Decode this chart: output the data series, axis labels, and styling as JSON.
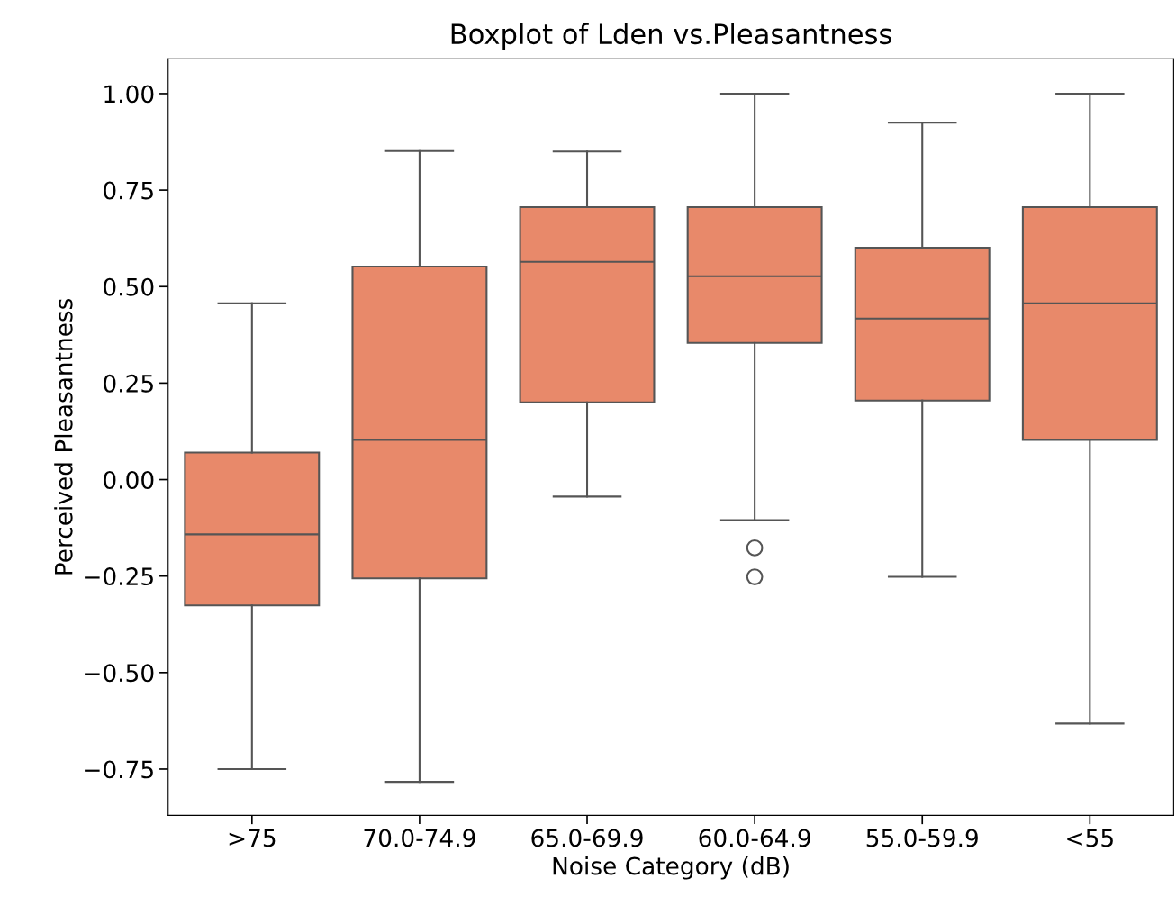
{
  "chart_data": {
    "type": "box",
    "title": "Boxplot of Lden vs.Pleasantness",
    "xlabel": "Noise Category (dB)",
    "ylabel": "Perceived Pleasantness",
    "categories": [
      ">75",
      "70.0-74.9",
      "65.0-69.9",
      "60.0-64.9",
      "55.0-59.9",
      "<55"
    ],
    "color": "#e8896a",
    "boxes": [
      {
        "low": -0.75,
        "q1": -0.326,
        "median": -0.142,
        "q3": 0.07,
        "high": 0.457
      },
      {
        "low": -0.783,
        "q1": -0.256,
        "median": 0.103,
        "q3": 0.552,
        "high": 0.851
      },
      {
        "low": -0.044,
        "q1": 0.2,
        "median": 0.564,
        "q3": 0.706,
        "high": 0.85
      },
      {
        "low": -0.105,
        "q1": 0.354,
        "median": 0.527,
        "q3": 0.706,
        "high": 1.0,
        "outliers": [
          -0.177,
          -0.252
        ]
      },
      {
        "low": -0.252,
        "q1": 0.205,
        "median": 0.417,
        "q3": 0.601,
        "high": 0.925
      },
      {
        "low": -0.632,
        "q1": 0.103,
        "median": 0.457,
        "q3": 0.706,
        "high": 1.0
      }
    ],
    "ylim": [
      -0.87,
      1.09
    ],
    "yticks": [
      {
        "value": -0.75,
        "label": "−0.75"
      },
      {
        "value": -0.5,
        "label": "−0.50"
      },
      {
        "value": -0.25,
        "label": "−0.25"
      },
      {
        "value": 0,
        "label": "0.00"
      },
      {
        "value": 0.25,
        "label": "0.25"
      },
      {
        "value": 0.5,
        "label": "0.50"
      },
      {
        "value": 0.75,
        "label": "0.75"
      },
      {
        "value": 1.0,
        "label": "1.00"
      }
    ],
    "grid": false
  }
}
